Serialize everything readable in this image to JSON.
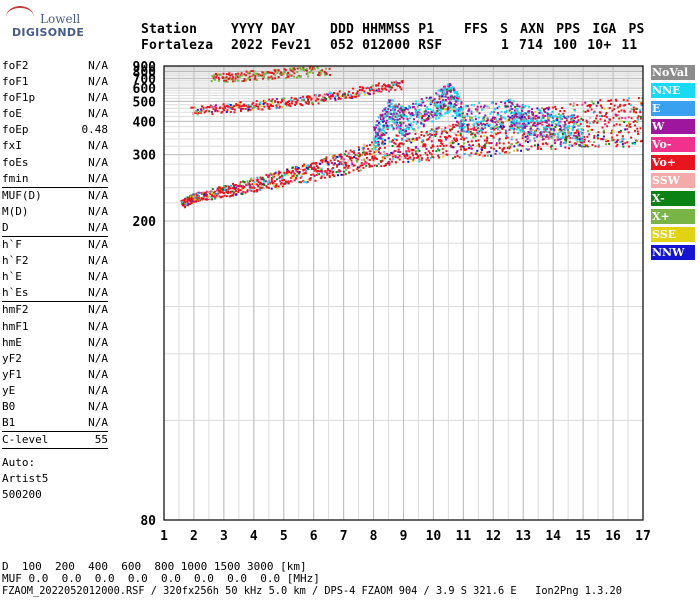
{
  "logo": {
    "top": "Lowell",
    "bottom": "DIGISONDE"
  },
  "header": {
    "labels": [
      "Station",
      "YYYY DAY",
      "DDD HHMMSS P1",
      "FFS S AXN PPS IGA PS"
    ],
    "values": [
      "Fortaleza",
      "2022 Fev21",
      "052 012000 RSF",
      "1 714 100 10+ 11"
    ]
  },
  "params": {
    "group1": [
      {
        "key": "foF2",
        "val": "N/A"
      },
      {
        "key": "foF1",
        "val": "N/A"
      },
      {
        "key": "foF1p",
        "val": "N/A"
      },
      {
        "key": "foE",
        "val": "N/A"
      },
      {
        "key": "foEp",
        "val": "0.48"
      },
      {
        "key": "fxI",
        "val": "N/A"
      },
      {
        "key": "foEs",
        "val": "N/A"
      },
      {
        "key": "fmin",
        "val": "N/A"
      }
    ],
    "group2": [
      {
        "key": "MUF(D)",
        "val": "N/A"
      },
      {
        "key": "M(D)",
        "val": "N/A"
      },
      {
        "key": "D",
        "val": "N/A"
      }
    ],
    "group3": [
      {
        "key": "h`F",
        "val": "N/A"
      },
      {
        "key": "h`F2",
        "val": "N/A"
      },
      {
        "key": "h`E",
        "val": "N/A"
      },
      {
        "key": "h`Es",
        "val": "N/A"
      }
    ],
    "group4": [
      {
        "key": "hmF2",
        "val": "N/A"
      },
      {
        "key": "hmF1",
        "val": "N/A"
      },
      {
        "key": "hmE",
        "val": "N/A"
      },
      {
        "key": "yF2",
        "val": "N/A"
      },
      {
        "key": "yF1",
        "val": "N/A"
      },
      {
        "key": "yE",
        "val": "N/A"
      },
      {
        "key": "B0",
        "val": "N/A"
      },
      {
        "key": "B1",
        "val": "N/A"
      }
    ],
    "group5": [
      {
        "key": "C-level",
        "val": "55"
      }
    ]
  },
  "auto": {
    "line1": "Auto:",
    "line2": "Artist5",
    "line3": "500200"
  },
  "legend": [
    {
      "label": "NoVal",
      "color": "#8c8c8c"
    },
    {
      "label": "NNE",
      "color": "#19d9f5"
    },
    {
      "label": "E",
      "color": "#3aa0f0"
    },
    {
      "label": "W",
      "color": "#9e169e"
    },
    {
      "label": "Vo-",
      "color": "#f0328c"
    },
    {
      "label": "Vo+",
      "color": "#e8141e"
    },
    {
      "label": "SSW",
      "color": "#f5aaaa"
    },
    {
      "label": "X-",
      "color": "#0a8214"
    },
    {
      "label": "X+",
      "color": "#78b446"
    },
    {
      "label": "SSE",
      "color": "#e1d214"
    },
    {
      "label": "NNW",
      "color": "#1414d2"
    }
  ],
  "chart_data": {
    "type": "scatter",
    "title": "",
    "xlabel": "",
    "ylabel": "",
    "xlim": [
      1,
      17
    ],
    "ylim": [
      80,
      900
    ],
    "x_ticks": [
      1,
      2,
      3,
      4,
      5,
      6,
      7,
      8,
      9,
      10,
      11,
      12,
      13,
      14,
      15,
      16,
      17
    ],
    "y_ticks": [
      80,
      200,
      300,
      400,
      500,
      600,
      700,
      800,
      900
    ],
    "y_scale": "reciprocal",
    "grid": true,
    "traces": [
      {
        "name": "F trace (1st hop)",
        "points": [
          [
            1.6,
            215
          ],
          [
            2,
            222
          ],
          [
            3,
            228
          ],
          [
            4,
            235
          ],
          [
            5,
            242
          ],
          [
            6,
            252
          ],
          [
            7,
            262
          ],
          [
            8,
            275
          ],
          [
            9,
            285
          ],
          [
            10,
            290
          ],
          [
            11,
            295
          ],
          [
            12,
            300
          ],
          [
            13,
            310
          ],
          [
            14,
            315
          ],
          [
            15,
            318
          ],
          [
            16,
            320
          ],
          [
            17,
            322
          ]
        ]
      },
      {
        "name": "F trace (2nd hop)",
        "points": [
          [
            1.9,
            430
          ],
          [
            3,
            440
          ],
          [
            4,
            455
          ],
          [
            5,
            470
          ],
          [
            6,
            490
          ],
          [
            7,
            520
          ],
          [
            8,
            560
          ],
          [
            9,
            600
          ]
        ]
      },
      {
        "name": "F trace (3rd hop)",
        "points": [
          [
            2.6,
            660
          ],
          [
            3.5,
            680
          ],
          [
            4.5,
            700
          ],
          [
            5.5,
            730
          ],
          [
            6.5,
            760
          ]
        ]
      },
      {
        "name": "spread F",
        "points": [
          [
            8,
            300
          ],
          [
            8.5,
            380
          ],
          [
            9,
            350
          ],
          [
            10,
            400
          ],
          [
            10.5,
            450
          ],
          [
            11,
            360
          ],
          [
            12.5,
            380
          ],
          [
            13,
            360
          ],
          [
            14,
            330
          ],
          [
            15,
            320
          ]
        ]
      }
    ]
  },
  "bottom": {
    "d_label": "D",
    "d_values": "  100  200  400  600  800 1000 1500 3000 [km]",
    "muf_label": "MUF",
    "muf_values": " 0.0  0.0  0.0  0.0  0.0  0.0  0.0  0.0 [MHz]",
    "footer": "FZAOM_2022052012000.RSF / 320fx256h 50 kHz 5.0 km / DPS-4 FZAOM 904 / 3.9 S 321.6 E   Ion2Png 1.3.20"
  }
}
